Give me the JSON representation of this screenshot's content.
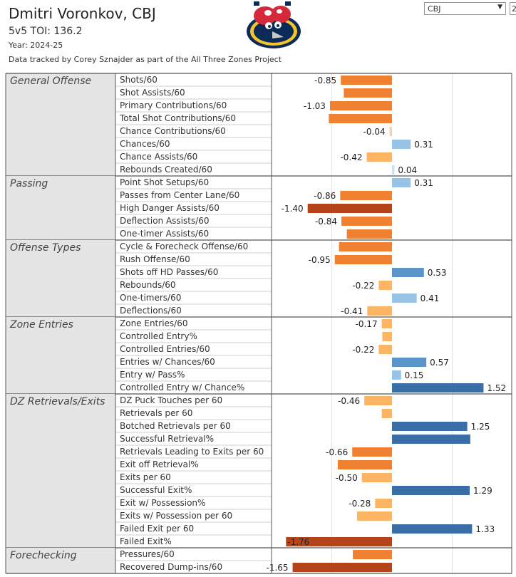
{
  "header": {
    "player_name": "Dmitri Voronkov, CBJ",
    "toi_label": "5v5 TOI: 136.2",
    "year_label": "Year: 2024-25",
    "credit": "Data tracked by Corey Sznajder as part of the All Three Zones Project",
    "team_filter": "CBJ",
    "second_filter": "2",
    "logo_icon": "blue-jackets-bug-logo-icon"
  },
  "colors": {
    "neg_strong": "#b5441b",
    "neg_mid": "#f08130",
    "neg_light": "#fdb463",
    "neg_faint": "#f4d2b2",
    "pos_strong": "#3a6ea7",
    "pos_mid": "#5b94c8",
    "pos_light": "#97c3e4",
    "pos_faint": "#cfe1ef"
  },
  "chart_data": {
    "type": "bar",
    "orientation": "horizontal",
    "xlim": [
      -1.9,
      1.9
    ],
    "grid": "vertical gridlines",
    "groups": [
      {
        "name": "General Offense",
        "metrics": [
          {
            "label": "Shots/60",
            "value": -0.85,
            "value_label": "-0.85"
          },
          {
            "label": "Shot Assists/60",
            "value": -0.8,
            "value_label": ""
          },
          {
            "label": "Primary Contributions/60",
            "value": -1.03,
            "value_label": "-1.03"
          },
          {
            "label": "Total Shot Contributions/60",
            "value": -1.05,
            "value_label": ""
          },
          {
            "label": "Chance Contributions/60",
            "value": -0.04,
            "value_label": "-0.04"
          },
          {
            "label": "Chances/60",
            "value": 0.31,
            "value_label": "0.31"
          },
          {
            "label": "Chance Assists/60",
            "value": -0.42,
            "value_label": "-0.42"
          },
          {
            "label": "Rebounds Created/60",
            "value": 0.04,
            "value_label": "0.04"
          }
        ]
      },
      {
        "name": "Passing",
        "metrics": [
          {
            "label": "Point Shot Setups/60",
            "value": 0.31,
            "value_label": "0.31"
          },
          {
            "label": "Passes from Center Lane/60",
            "value": -0.86,
            "value_label": "-0.86"
          },
          {
            "label": "High Danger Assists/60",
            "value": -1.4,
            "value_label": "-1.40"
          },
          {
            "label": "Deflection Assists/60",
            "value": -0.84,
            "value_label": "-0.84"
          },
          {
            "label": "One-timer Assists/60",
            "value": -0.75,
            "value_label": ""
          }
        ]
      },
      {
        "name": "Offense Types",
        "metrics": [
          {
            "label": "Cycle & Forecheck Offense/60",
            "value": -0.88,
            "value_label": ""
          },
          {
            "label": "Rush Offense/60",
            "value": -0.95,
            "value_label": "-0.95"
          },
          {
            "label": "Shots off HD Passes/60",
            "value": 0.53,
            "value_label": "0.53"
          },
          {
            "label": "Rebounds/60",
            "value": -0.22,
            "value_label": "-0.22"
          },
          {
            "label": "One-timers/60",
            "value": 0.41,
            "value_label": "0.41"
          },
          {
            "label": "Deflections/60",
            "value": -0.41,
            "value_label": "-0.41"
          }
        ]
      },
      {
        "name": "Zone Entries",
        "metrics": [
          {
            "label": "Zone Entries/60",
            "value": -0.17,
            "value_label": "-0.17"
          },
          {
            "label": "Controlled Entry%",
            "value": -0.16,
            "value_label": ""
          },
          {
            "label": "Controlled Entries/60",
            "value": -0.22,
            "value_label": "-0.22"
          },
          {
            "label": "Entries w/ Chances/60",
            "value": 0.57,
            "value_label": "0.57"
          },
          {
            "label": "Entry w/ Pass%",
            "value": 0.15,
            "value_label": "0.15"
          },
          {
            "label": "Controlled Entry w/ Chance%",
            "value": 1.52,
            "value_label": "1.52"
          }
        ]
      },
      {
        "name": "DZ Retrievals/Exits",
        "metrics": [
          {
            "label": "DZ Puck Touches per 60",
            "value": -0.46,
            "value_label": "-0.46"
          },
          {
            "label": "Retrievals per 60",
            "value": -0.17,
            "value_label": ""
          },
          {
            "label": "Botched Retrievals per 60",
            "value": 1.25,
            "value_label": "1.25"
          },
          {
            "label": "Successful Retrieval%",
            "value": 1.3,
            "value_label": ""
          },
          {
            "label": "Retrievals Leading to Exits per 60",
            "value": -0.66,
            "value_label": "-0.66"
          },
          {
            "label": "Exit off Retrieval%",
            "value": -0.9,
            "value_label": ""
          },
          {
            "label": "Exits per 60",
            "value": -0.5,
            "value_label": "-0.50"
          },
          {
            "label": "Successful Exit%",
            "value": 1.29,
            "value_label": "1.29"
          },
          {
            "label": "Exit w/ Possession%",
            "value": -0.28,
            "value_label": "-0.28"
          },
          {
            "label": "Exits w/ Possession per 60",
            "value": -0.58,
            "value_label": ""
          },
          {
            "label": "Failed Exit per 60",
            "value": 1.33,
            "value_label": "1.33"
          },
          {
            "label": "Failed Exit%",
            "value": -1.76,
            "value_label": "-1.76"
          }
        ]
      },
      {
        "name": "Forechecking",
        "metrics": [
          {
            "label": "Pressures/60",
            "value": -0.65,
            "value_label": ""
          },
          {
            "label": "Recovered Dump-ins/60",
            "value": -1.65,
            "value_label": "-1.65"
          }
        ]
      }
    ]
  }
}
